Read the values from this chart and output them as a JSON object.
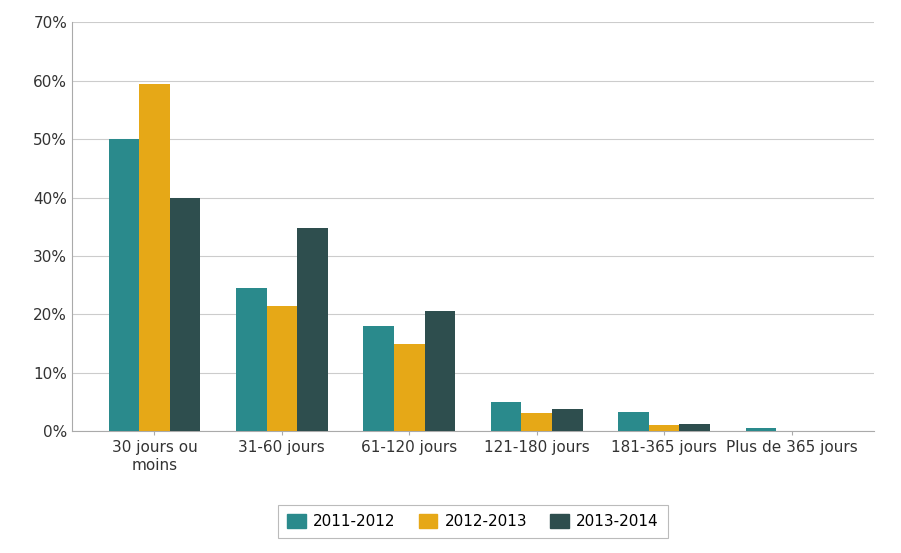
{
  "categories": [
    "30 jours ou\nmoins",
    "31-60 jours",
    "61-120 jours",
    "121-180 jours",
    "181-365 jours",
    "Plus de 365 jours"
  ],
  "series": {
    "2011-2012": [
      0.5,
      0.245,
      0.18,
      0.05,
      0.033,
      0.005
    ],
    "2012-2013": [
      0.595,
      0.215,
      0.15,
      0.031,
      0.011,
      0.0
    ],
    "2013-2014": [
      0.4,
      0.348,
      0.205,
      0.038,
      0.013,
      0.0
    ]
  },
  "colors": {
    "2011-2012": "#2a8a8c",
    "2012-2013": "#e6a817",
    "2013-2014": "#2e4e4e"
  },
  "legend_labels": [
    "2011-2012",
    "2012-2013",
    "2013-2014"
  ],
  "ylim": [
    0,
    0.7
  ],
  "yticks": [
    0.0,
    0.1,
    0.2,
    0.3,
    0.4,
    0.5,
    0.6,
    0.7
  ],
  "ytick_labels": [
    "0%",
    "10%",
    "20%",
    "30%",
    "40%",
    "50%",
    "60%",
    "70%"
  ],
  "background_color": "#ffffff",
  "grid_color": "#cccccc",
  "bar_width": 0.24,
  "spine_color": "#aaaaaa"
}
